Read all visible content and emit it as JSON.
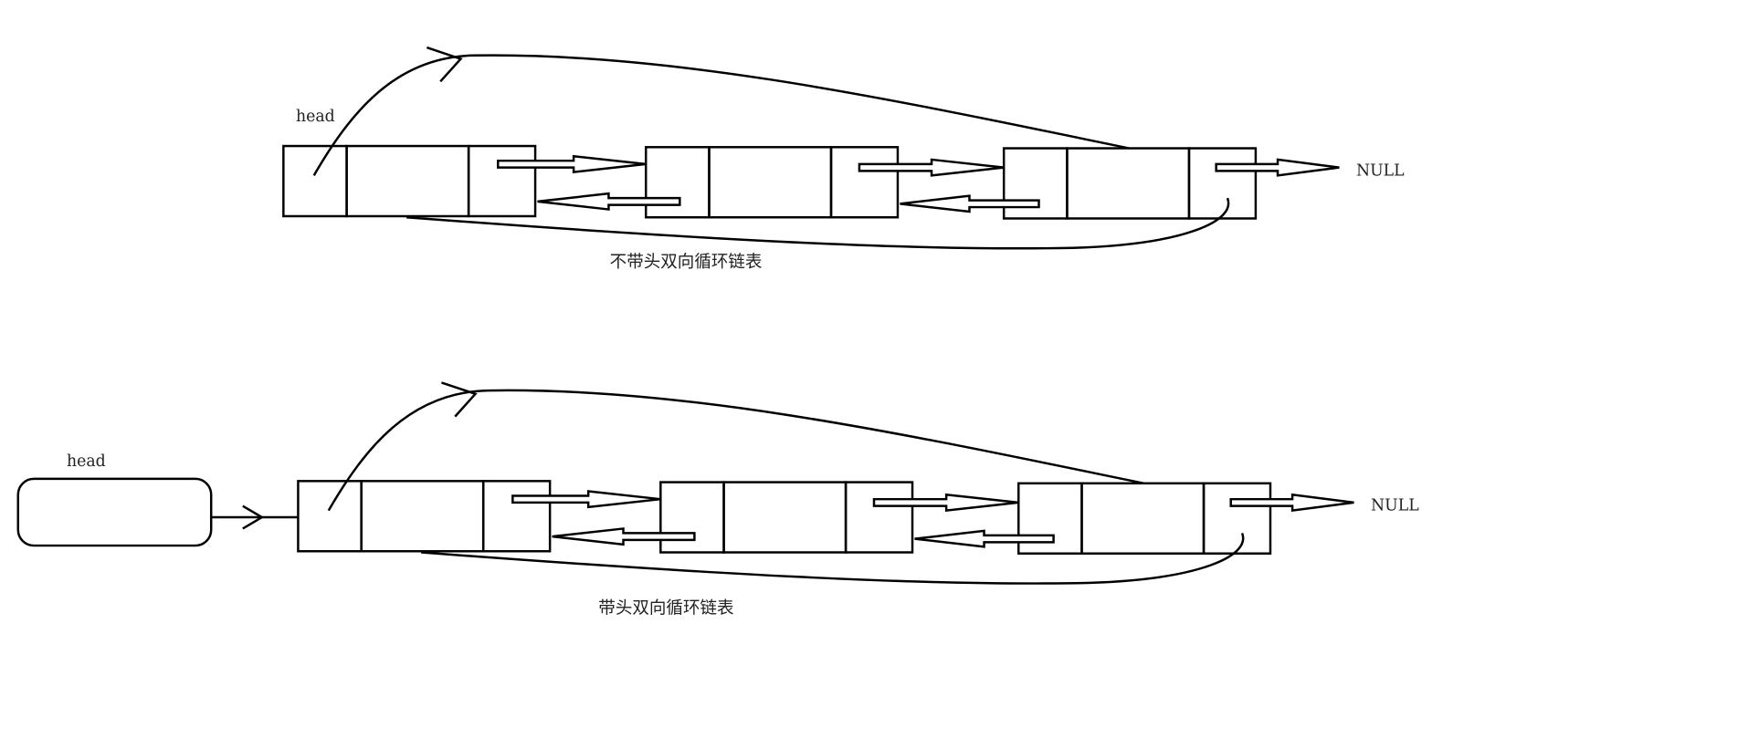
{
  "diagrams": [
    {
      "head_label": "head",
      "null_label": "NULL",
      "caption": "不带头双向循环链表"
    },
    {
      "head_label": "head",
      "null_label": "NULL",
      "caption": "带头双向循环链表"
    }
  ]
}
